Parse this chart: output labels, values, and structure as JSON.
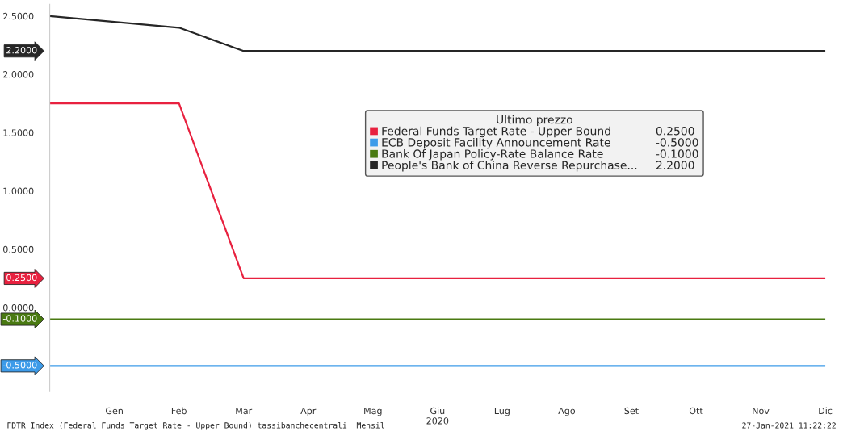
{
  "chart_data": {
    "type": "line",
    "categories": [
      null,
      "Gen",
      "Feb",
      "Mar",
      "Apr",
      "Mag",
      "Giu\n2020",
      "Lug",
      "Ago",
      "Set",
      "Ott",
      "Nov",
      "Dic"
    ],
    "series": [
      {
        "name": "Federal Funds Target Rate - Upper Bound",
        "color": "#e8213f",
        "values": [
          1.75,
          1.75,
          1.75,
          0.25,
          0.25,
          0.25,
          0.25,
          0.25,
          0.25,
          0.25,
          0.25,
          0.25,
          0.25
        ]
      },
      {
        "name": "ECB Deposit Facility Announcement Rate",
        "color": "#3d9be9",
        "values": [
          -0.5,
          -0.5,
          -0.5,
          -0.5,
          -0.5,
          -0.5,
          -0.5,
          -0.5,
          -0.5,
          -0.5,
          -0.5,
          -0.5,
          -0.5
        ]
      },
      {
        "name": "Bank Of Japan Policy-Rate Balance Rate",
        "color": "#4a7a12",
        "values": [
          -0.1,
          -0.1,
          -0.1,
          -0.1,
          -0.1,
          -0.1,
          -0.1,
          -0.1,
          -0.1,
          -0.1,
          -0.1,
          -0.1,
          -0.1
        ]
      },
      {
        "name": "People's Bank of China Reverse Repurchase...",
        "color": "#262626",
        "values": [
          2.5,
          2.45,
          2.4,
          2.2,
          2.2,
          2.2,
          2.2,
          2.2,
          2.2,
          2.2,
          2.2,
          2.2,
          2.2
        ]
      }
    ],
    "ylim": [
      -0.72,
      2.6
    ],
    "yticks": [
      {
        "value": 0,
        "label": "0.0000"
      },
      {
        "value": 0.5,
        "label": "0.5000"
      },
      {
        "value": 1,
        "label": "1.0000"
      },
      {
        "value": 1.5,
        "label": "1.5000"
      },
      {
        "value": 2,
        "label": "2.0000"
      },
      {
        "value": 2.5,
        "label": "2.5000"
      }
    ],
    "legend_title": "Ultimo prezzo",
    "legend": "top right",
    "grid": false,
    "annotations": [
      "0.2500",
      "-0.5000",
      "-0.1000",
      "2.2000",
      "FDTR Index (Federal Funds Target Rate - Upper Bound) tassibanchecentrali  Mensil",
      "27-Jan-2021 11:22:22"
    ]
  }
}
